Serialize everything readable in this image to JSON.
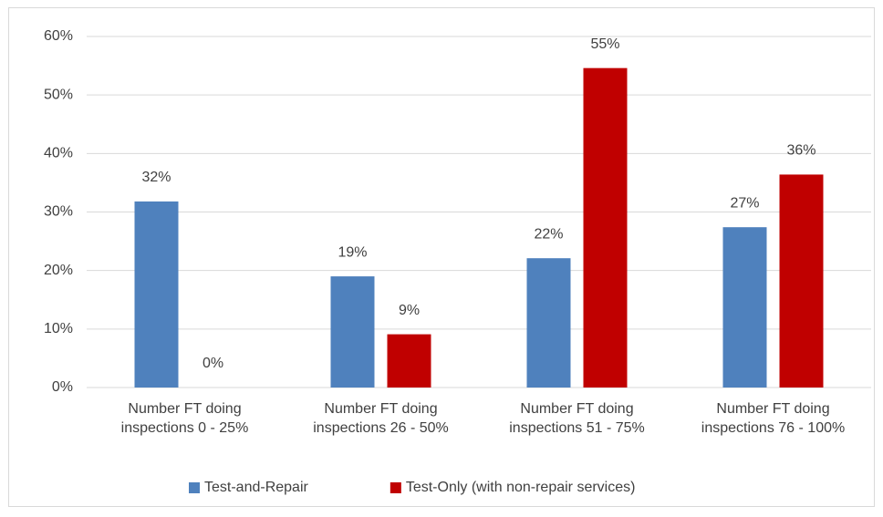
{
  "chart_data": {
    "type": "bar",
    "categories": [
      "Number FT doing inspections 0 - 25%",
      "Number FT doing inspections 26 - 50%",
      "Number FT doing inspections 51 - 75%",
      "Number FT doing inspections 76 - 100%"
    ],
    "series": [
      {
        "name": "Test-and-Repair",
        "color": "#4f81bd",
        "values": [
          31.8,
          19.0,
          22.1,
          27.4
        ],
        "value_labels": [
          "32%",
          "19%",
          "22%",
          "27%"
        ]
      },
      {
        "name": "Test-Only (with non-repair services)",
        "color": "#c00000",
        "values": [
          0,
          9.1,
          54.6,
          36.4
        ],
        "value_labels": [
          "0%",
          "9%",
          "55%",
          "36%"
        ]
      }
    ],
    "ylim": [
      0,
      60
    ],
    "yticks": [
      {
        "value": 0,
        "label": "0%"
      },
      {
        "value": 10,
        "label": "10%"
      },
      {
        "value": 20,
        "label": "20%"
      },
      {
        "value": 30,
        "label": "30%"
      },
      {
        "value": 40,
        "label": "40%"
      },
      {
        "value": 50,
        "label": "50%"
      },
      {
        "value": 60,
        "label": "60%"
      }
    ],
    "grid": true,
    "legend": "bottom"
  }
}
